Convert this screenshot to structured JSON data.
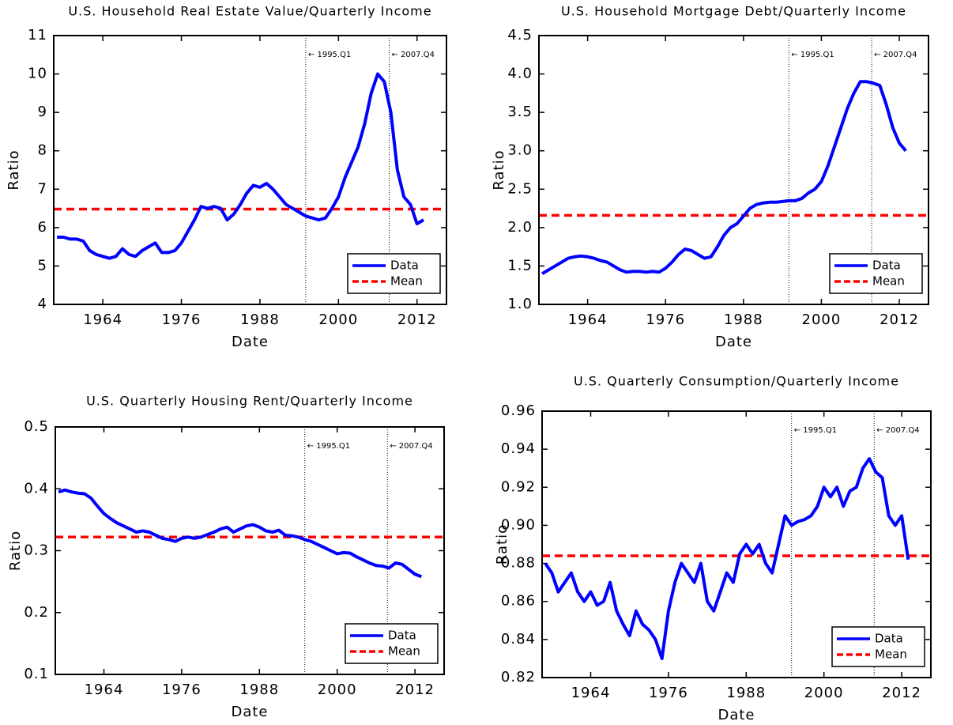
{
  "chart_data": [
    {
      "type": "line",
      "title": "U.S. Household Real Estate Value/Quarterly Income",
      "x_label": "Date",
      "y_label": "Ratio",
      "x": [
        1957,
        1958,
        1959,
        1960,
        1961,
        1962,
        1963,
        1964,
        1965,
        1966,
        1967,
        1968,
        1969,
        1970,
        1971,
        1972,
        1973,
        1974,
        1975,
        1976,
        1977,
        1978,
        1979,
        1980,
        1981,
        1982,
        1983,
        1984,
        1985,
        1986,
        1987,
        1988,
        1989,
        1990,
        1991,
        1992,
        1993,
        1994,
        1995,
        1996,
        1997,
        1998,
        1999,
        2000,
        2001,
        2002,
        2003,
        2004,
        2005,
        2006,
        2007,
        2008,
        2009,
        2010,
        2011,
        2012,
        2013
      ],
      "series": [
        {
          "name": "Data",
          "color": "#0000ff",
          "values": [
            5.75,
            5.75,
            5.7,
            5.7,
            5.65,
            5.4,
            5.3,
            5.25,
            5.2,
            5.25,
            5.45,
            5.3,
            5.25,
            5.4,
            5.5,
            5.6,
            5.35,
            5.35,
            5.4,
            5.6,
            5.9,
            6.2,
            6.55,
            6.5,
            6.55,
            6.5,
            6.2,
            6.35,
            6.6,
            6.9,
            7.1,
            7.05,
            7.15,
            7.0,
            6.8,
            6.6,
            6.5,
            6.4,
            6.3,
            6.25,
            6.2,
            6.25,
            6.5,
            6.8,
            7.3,
            7.7,
            8.1,
            8.7,
            9.5,
            10.0,
            9.8,
            9.0,
            7.5,
            6.8,
            6.6,
            6.1,
            6.2
          ]
        }
      ],
      "reference_lines": [
        {
          "name": "Mean",
          "color": "#ff0000",
          "value": 6.48
        }
      ],
      "annotations": [
        {
          "x": 1995,
          "label": "← 1995.Q1"
        },
        {
          "x": 2007.75,
          "label": "← 2007.Q4"
        }
      ],
      "xlim": [
        1956.5,
        2016.5
      ],
      "xticks": [
        1964,
        1976,
        1988,
        2000,
        2012
      ],
      "ylim": [
        4,
        11
      ],
      "yticks": [
        4,
        5,
        6,
        7,
        8,
        9,
        10,
        11
      ],
      "legend": "lower right"
    },
    {
      "type": "line",
      "title": "U.S. Household Mortgage Debt/Quarterly Income",
      "x_label": "Date",
      "y_label": "Ratio",
      "x": [
        1957,
        1958,
        1959,
        1960,
        1961,
        1962,
        1963,
        1964,
        1965,
        1966,
        1967,
        1968,
        1969,
        1970,
        1971,
        1972,
        1973,
        1974,
        1975,
        1976,
        1977,
        1978,
        1979,
        1980,
        1981,
        1982,
        1983,
        1984,
        1985,
        1986,
        1987,
        1988,
        1989,
        1990,
        1991,
        1992,
        1993,
        1994,
        1995,
        1996,
        1997,
        1998,
        1999,
        2000,
        2001,
        2002,
        2003,
        2004,
        2005,
        2006,
        2007,
        2008,
        2009,
        2010,
        2011,
        2012,
        2013
      ],
      "series": [
        {
          "name": "Data",
          "color": "#0000ff",
          "values": [
            1.4,
            1.45,
            1.5,
            1.55,
            1.6,
            1.62,
            1.63,
            1.62,
            1.6,
            1.57,
            1.55,
            1.5,
            1.45,
            1.42,
            1.43,
            1.43,
            1.42,
            1.43,
            1.42,
            1.47,
            1.55,
            1.65,
            1.72,
            1.7,
            1.65,
            1.6,
            1.62,
            1.75,
            1.9,
            2.0,
            2.05,
            2.15,
            2.25,
            2.3,
            2.32,
            2.33,
            2.33,
            2.34,
            2.35,
            2.35,
            2.38,
            2.45,
            2.5,
            2.6,
            2.8,
            3.05,
            3.3,
            3.55,
            3.75,
            3.9,
            3.9,
            3.88,
            3.85,
            3.6,
            3.3,
            3.1,
            3.0
          ]
        }
      ],
      "reference_lines": [
        {
          "name": "Mean",
          "color": "#ff0000",
          "value": 2.16
        }
      ],
      "annotations": [
        {
          "x": 1995,
          "label": "← 1995.Q1"
        },
        {
          "x": 2007.75,
          "label": "← 2007.Q4"
        }
      ],
      "xlim": [
        1956.5,
        2016.5
      ],
      "xticks": [
        1964,
        1976,
        1988,
        2000,
        2012
      ],
      "ylim": [
        1,
        4.5
      ],
      "yticks": [
        {
          "value": 1,
          "label": "1.0"
        },
        1.5,
        {
          "value": 2,
          "label": "2.0"
        },
        2.5,
        {
          "value": 3,
          "label": "3.0"
        },
        3.5,
        {
          "value": 4,
          "label": "4.0"
        },
        4.5
      ],
      "legend": "lower right"
    },
    {
      "type": "line",
      "title": "U.S. Quarterly Housing Rent/Quarterly Income",
      "x_label": "Date",
      "y_label": "Ratio",
      "x": [
        1957,
        1958,
        1959,
        1960,
        1961,
        1962,
        1963,
        1964,
        1965,
        1966,
        1967,
        1968,
        1969,
        1970,
        1971,
        1972,
        1973,
        1974,
        1975,
        1976,
        1977,
        1978,
        1979,
        1980,
        1981,
        1982,
        1983,
        1984,
        1985,
        1986,
        1987,
        1988,
        1989,
        1990,
        1991,
        1992,
        1993,
        1994,
        1995,
        1996,
        1997,
        1998,
        1999,
        2000,
        2001,
        2002,
        2003,
        2004,
        2005,
        2006,
        2007,
        2008,
        2009,
        2010,
        2011,
        2012,
        2013
      ],
      "series": [
        {
          "name": "Data",
          "color": "#0000ff",
          "values": [
            0.395,
            0.398,
            0.395,
            0.393,
            0.392,
            0.385,
            0.372,
            0.36,
            0.352,
            0.345,
            0.34,
            0.335,
            0.33,
            0.332,
            0.33,
            0.325,
            0.32,
            0.318,
            0.315,
            0.32,
            0.322,
            0.32,
            0.322,
            0.326,
            0.33,
            0.335,
            0.338,
            0.33,
            0.335,
            0.34,
            0.342,
            0.338,
            0.332,
            0.33,
            0.333,
            0.325,
            0.324,
            0.322,
            0.318,
            0.315,
            0.31,
            0.305,
            0.3,
            0.295,
            0.297,
            0.296,
            0.29,
            0.285,
            0.28,
            0.276,
            0.275,
            0.272,
            0.28,
            0.278,
            0.27,
            0.262,
            0.258
          ]
        }
      ],
      "reference_lines": [
        {
          "name": "Mean",
          "color": "#ff0000",
          "value": 0.322
        }
      ],
      "annotations": [
        {
          "x": 1995,
          "label": "← 1995.Q1"
        },
        {
          "x": 2007.75,
          "label": "← 2007.Q4"
        }
      ],
      "xlim": [
        1956.5,
        2016.5
      ],
      "xticks": [
        1964,
        1976,
        1988,
        2000,
        2012
      ],
      "ylim": [
        0.1,
        0.5
      ],
      "yticks": [
        0.1,
        0.2,
        0.3,
        0.4,
        0.5
      ],
      "legend": "lower right"
    },
    {
      "type": "line",
      "title": "U.S. Quarterly Consumption/Quarterly Income",
      "x_label": "Date",
      "y_label": "Ratio",
      "x": [
        1957,
        1958,
        1959,
        1960,
        1961,
        1962,
        1963,
        1964,
        1965,
        1966,
        1967,
        1968,
        1969,
        1970,
        1971,
        1972,
        1973,
        1974,
        1975,
        1976,
        1977,
        1978,
        1979,
        1980,
        1981,
        1982,
        1983,
        1984,
        1985,
        1986,
        1987,
        1988,
        1989,
        1990,
        1991,
        1992,
        1993,
        1994,
        1995,
        1996,
        1997,
        1998,
        1999,
        2000,
        2001,
        2002,
        2003,
        2004,
        2005,
        2006,
        2007,
        2008,
        2009,
        2010,
        2011,
        2012,
        2013
      ],
      "series": [
        {
          "name": "Data",
          "color": "#0000ff",
          "values": [
            0.88,
            0.875,
            0.865,
            0.87,
            0.875,
            0.865,
            0.86,
            0.865,
            0.858,
            0.86,
            0.87,
            0.855,
            0.848,
            0.842,
            0.855,
            0.848,
            0.845,
            0.84,
            0.83,
            0.855,
            0.87,
            0.88,
            0.875,
            0.87,
            0.88,
            0.86,
            0.855,
            0.865,
            0.875,
            0.87,
            0.885,
            0.89,
            0.885,
            0.89,
            0.88,
            0.875,
            0.89,
            0.905,
            0.9,
            0.902,
            0.903,
            0.905,
            0.91,
            0.92,
            0.915,
            0.92,
            0.91,
            0.918,
            0.92,
            0.93,
            0.935,
            0.928,
            0.925,
            0.905,
            0.9,
            0.905,
            0.882
          ]
        }
      ],
      "reference_lines": [
        {
          "name": "Mean",
          "color": "#ff0000",
          "value": 0.884
        }
      ],
      "annotations": [
        {
          "x": 1995,
          "label": "← 1995.Q1"
        },
        {
          "x": 2007.75,
          "label": "← 2007.Q4"
        }
      ],
      "xlim": [
        1956.5,
        2016.5
      ],
      "xticks": [
        1964,
        1976,
        1988,
        2000,
        2012
      ],
      "ylim": [
        0.82,
        0.96
      ],
      "yticks": [
        0.82,
        0.84,
        0.86,
        0.88,
        {
          "value": 0.9,
          "label": "0.90"
        },
        0.92,
        0.94,
        0.96
      ],
      "legend": "lower right"
    }
  ]
}
